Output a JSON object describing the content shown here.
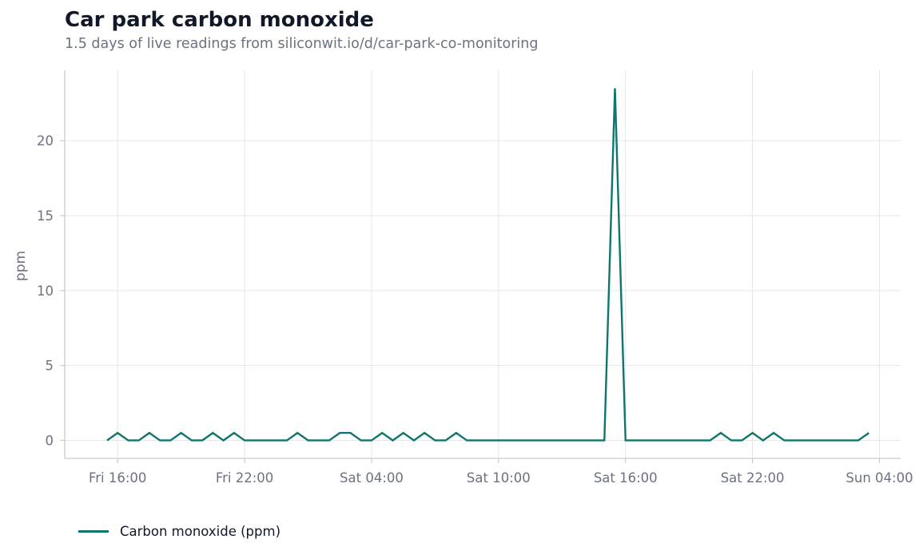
{
  "colors": {
    "line": "#0f766e",
    "grid": "#e5e7eb",
    "axis": "#c9ccd1",
    "text_muted": "#6b7280",
    "text_dark": "#111827"
  },
  "chart_data": {
    "type": "line",
    "title": "Car park carbon monoxide",
    "subtitle": "1.5 days of live readings from siliconwit.io/d/car-park-co-monitoring",
    "xlabel": "",
    "ylabel": "ppm",
    "ylim": [
      -1.2,
      24.7
    ],
    "yticks": [
      0,
      5,
      10,
      15,
      20
    ],
    "xlim": [
      "Fri 13:30",
      "Sun 05:00"
    ],
    "xticks": [
      {
        "value": "Fri 16:00",
        "label": "Fri 16:00"
      },
      {
        "value": "Fri 22:00",
        "label": "Fri 22:00"
      },
      {
        "value": "Sat 04:00",
        "label": "Sat 04:00"
      },
      {
        "value": "Sat 10:00",
        "label": "Sat 10:00"
      },
      {
        "value": "Sat 16:00",
        "label": "Sat 16:00"
      },
      {
        "value": "Sat 22:00",
        "label": "Sat 22:00"
      },
      {
        "value": "Sun 04:00",
        "label": "Sun 04:00"
      }
    ],
    "grid": true,
    "legend_position": "bottom-left",
    "series": [
      {
        "name": "Carbon monoxide (ppm)",
        "points": [
          [
            "Fri 15:30",
            0
          ],
          [
            "Fri 16:00",
            0.5
          ],
          [
            "Fri 16:30",
            0
          ],
          [
            "Fri 17:00",
            0
          ],
          [
            "Fri 17:30",
            0.5
          ],
          [
            "Fri 18:00",
            0
          ],
          [
            "Fri 18:30",
            0
          ],
          [
            "Fri 19:00",
            0.5
          ],
          [
            "Fri 19:30",
            0
          ],
          [
            "Fri 20:00",
            0
          ],
          [
            "Fri 20:30",
            0.5
          ],
          [
            "Fri 21:00",
            0
          ],
          [
            "Fri 21:30",
            0.5
          ],
          [
            "Fri 22:00",
            0
          ],
          [
            "Fri 22:30",
            0
          ],
          [
            "Fri 23:00",
            0
          ],
          [
            "Fri 23:30",
            0
          ],
          [
            "Sat 00:00",
            0
          ],
          [
            "Sat 00:30",
            0.5
          ],
          [
            "Sat 01:00",
            0
          ],
          [
            "Sat 01:30",
            0
          ],
          [
            "Sat 02:00",
            0
          ],
          [
            "Sat 02:30",
            0.5
          ],
          [
            "Sat 03:00",
            0.5
          ],
          [
            "Sat 03:30",
            0
          ],
          [
            "Sat 04:00",
            0
          ],
          [
            "Sat 04:30",
            0.5
          ],
          [
            "Sat 05:00",
            0
          ],
          [
            "Sat 05:30",
            0.5
          ],
          [
            "Sat 06:00",
            0
          ],
          [
            "Sat 06:30",
            0.5
          ],
          [
            "Sat 07:00",
            0
          ],
          [
            "Sat 07:30",
            0
          ],
          [
            "Sat 08:00",
            0.5
          ],
          [
            "Sat 08:30",
            0
          ],
          [
            "Sat 09:00",
            0
          ],
          [
            "Sat 15:00",
            0
          ],
          [
            "Sat 15:30",
            23.5
          ],
          [
            "Sat 16:00",
            0
          ],
          [
            "Sat 16:30",
            0
          ],
          [
            "Sat 20:00",
            0
          ],
          [
            "Sat 20:30",
            0.5
          ],
          [
            "Sat 21:00",
            0
          ],
          [
            "Sat 21:30",
            0
          ],
          [
            "Sat 22:00",
            0.5
          ],
          [
            "Sat 22:30",
            0
          ],
          [
            "Sat 23:00",
            0.5
          ],
          [
            "Sat 23:30",
            0
          ],
          [
            "Sun 00:00",
            0
          ],
          [
            "Sun 03:00",
            0
          ],
          [
            "Sun 03:30",
            0.5
          ]
        ]
      }
    ]
  }
}
